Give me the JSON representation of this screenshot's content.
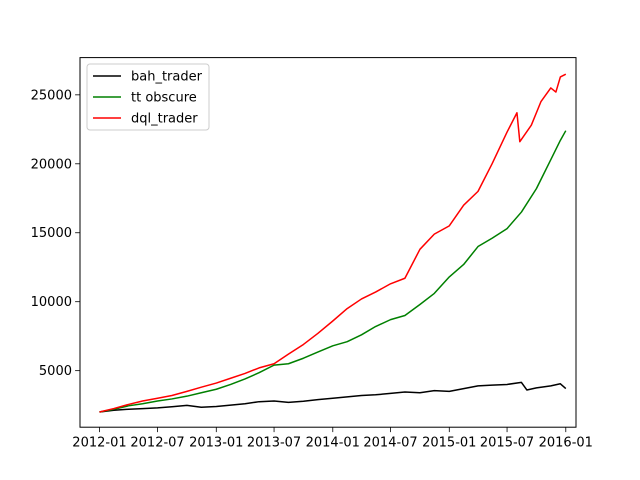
{
  "chart_data": {
    "type": "line",
    "title": "",
    "xlabel": "",
    "ylabel": "",
    "grid": false,
    "legend_position": "top-left",
    "x_ticks": [
      "2012-01",
      "2012-07",
      "2013-01",
      "2013-07",
      "2014-01",
      "2014-07",
      "2015-01",
      "2015-07",
      "2016-01"
    ],
    "y_ticks": [
      5000,
      10000,
      15000,
      20000,
      25000
    ],
    "xlim": [
      "2011-11-01",
      "2016-02-02"
    ],
    "ylim": [
      900,
      27700
    ],
    "series": [
      {
        "name": "bah_trader",
        "color": "#000000",
        "points": [
          [
            "2012-01-01",
            2000
          ],
          [
            "2012-02-15",
            2130
          ],
          [
            "2012-04-01",
            2200
          ],
          [
            "2012-05-15",
            2250
          ],
          [
            "2012-07-01",
            2300
          ],
          [
            "2012-08-15",
            2380
          ],
          [
            "2012-10-01",
            2480
          ],
          [
            "2012-11-15",
            2350
          ],
          [
            "2013-01-01",
            2400
          ],
          [
            "2013-02-15",
            2500
          ],
          [
            "2013-04-01",
            2600
          ],
          [
            "2013-05-15",
            2750
          ],
          [
            "2013-07-01",
            2800
          ],
          [
            "2013-08-15",
            2700
          ],
          [
            "2013-10-01",
            2780
          ],
          [
            "2013-11-15",
            2900
          ],
          [
            "2014-01-01",
            3000
          ],
          [
            "2014-02-15",
            3100
          ],
          [
            "2014-04-01",
            3200
          ],
          [
            "2014-05-15",
            3250
          ],
          [
            "2014-07-01",
            3350
          ],
          [
            "2014-08-15",
            3450
          ],
          [
            "2014-10-01",
            3400
          ],
          [
            "2014-11-15",
            3550
          ],
          [
            "2015-01-01",
            3500
          ],
          [
            "2015-02-15",
            3700
          ],
          [
            "2015-04-01",
            3900
          ],
          [
            "2015-05-15",
            3950
          ],
          [
            "2015-07-01",
            4000
          ],
          [
            "2015-08-15",
            4150
          ],
          [
            "2015-09-01",
            3600
          ],
          [
            "2015-10-01",
            3750
          ],
          [
            "2015-11-15",
            3900
          ],
          [
            "2015-12-15",
            4050
          ],
          [
            "2016-01-01",
            3700
          ]
        ]
      },
      {
        "name": "tt obscure",
        "color": "#008000",
        "points": [
          [
            "2012-01-01",
            2000
          ],
          [
            "2012-02-15",
            2200
          ],
          [
            "2012-04-01",
            2450
          ],
          [
            "2012-05-15",
            2600
          ],
          [
            "2012-07-01",
            2800
          ],
          [
            "2012-08-15",
            2950
          ],
          [
            "2012-10-01",
            3150
          ],
          [
            "2012-11-15",
            3400
          ],
          [
            "2013-01-01",
            3650
          ],
          [
            "2013-02-15",
            4000
          ],
          [
            "2013-04-01",
            4400
          ],
          [
            "2013-05-15",
            4850
          ],
          [
            "2013-07-01",
            5400
          ],
          [
            "2013-08-15",
            5500
          ],
          [
            "2013-10-01",
            5900
          ],
          [
            "2013-11-15",
            6350
          ],
          [
            "2014-01-01",
            6800
          ],
          [
            "2014-02-15",
            7100
          ],
          [
            "2014-04-01",
            7600
          ],
          [
            "2014-05-15",
            8200
          ],
          [
            "2014-07-01",
            8700
          ],
          [
            "2014-08-15",
            9000
          ],
          [
            "2014-10-01",
            9800
          ],
          [
            "2014-11-15",
            10600
          ],
          [
            "2015-01-01",
            11800
          ],
          [
            "2015-02-15",
            12700
          ],
          [
            "2015-04-01",
            14000
          ],
          [
            "2015-05-15",
            14600
          ],
          [
            "2015-07-01",
            15300
          ],
          [
            "2015-08-15",
            16500
          ],
          [
            "2015-10-01",
            18200
          ],
          [
            "2015-11-15",
            20300
          ],
          [
            "2015-12-15",
            21700
          ],
          [
            "2016-01-01",
            22400
          ]
        ]
      },
      {
        "name": "dql_trader",
        "color": "#ff0000",
        "points": [
          [
            "2012-01-01",
            2000
          ],
          [
            "2012-02-15",
            2250
          ],
          [
            "2012-04-01",
            2550
          ],
          [
            "2012-05-15",
            2800
          ],
          [
            "2012-07-01",
            3000
          ],
          [
            "2012-08-15",
            3200
          ],
          [
            "2012-10-01",
            3500
          ],
          [
            "2012-11-15",
            3800
          ],
          [
            "2013-01-01",
            4100
          ],
          [
            "2013-02-15",
            4450
          ],
          [
            "2013-04-01",
            4800
          ],
          [
            "2013-05-15",
            5200
          ],
          [
            "2013-07-01",
            5500
          ],
          [
            "2013-08-15",
            6200
          ],
          [
            "2013-10-01",
            6900
          ],
          [
            "2013-11-15",
            7700
          ],
          [
            "2014-01-01",
            8600
          ],
          [
            "2014-02-15",
            9500
          ],
          [
            "2014-04-01",
            10200
          ],
          [
            "2014-05-15",
            10700
          ],
          [
            "2014-07-01",
            11300
          ],
          [
            "2014-08-15",
            11700
          ],
          [
            "2014-10-01",
            13800
          ],
          [
            "2014-11-15",
            14900
          ],
          [
            "2015-01-01",
            15500
          ],
          [
            "2015-02-15",
            17000
          ],
          [
            "2015-04-01",
            18000
          ],
          [
            "2015-05-15",
            20000
          ],
          [
            "2015-07-01",
            22300
          ],
          [
            "2015-08-01",
            23700
          ],
          [
            "2015-08-10",
            21600
          ],
          [
            "2015-09-15",
            22800
          ],
          [
            "2015-10-15",
            24500
          ],
          [
            "2015-11-15",
            25500
          ],
          [
            "2015-12-01",
            25200
          ],
          [
            "2015-12-15",
            26300
          ],
          [
            "2016-01-01",
            26500
          ]
        ]
      }
    ]
  }
}
